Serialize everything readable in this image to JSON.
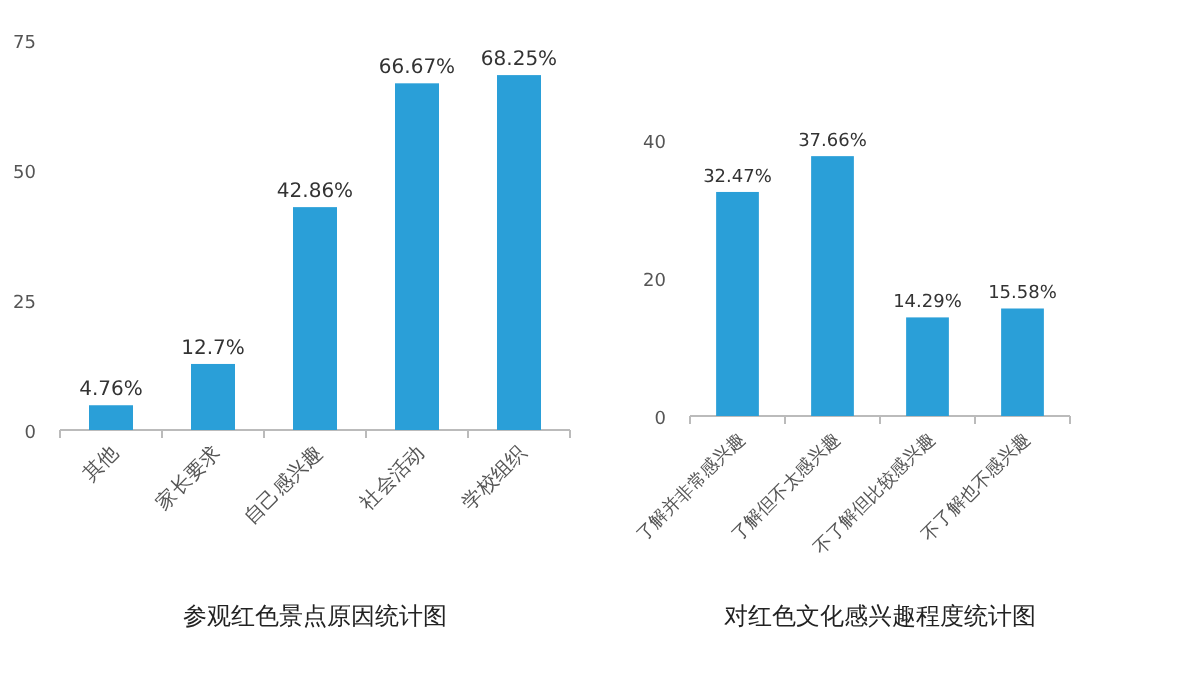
{
  "chart_data": [
    {
      "type": "bar",
      "title": "参观红色景点原因统计图",
      "categories": [
        "其他",
        "家长要求",
        "自己感兴趣",
        "社会活动",
        "学校组织"
      ],
      "values": [
        4.76,
        12.7,
        42.86,
        66.67,
        68.25
      ],
      "value_labels": [
        "4.76%",
        "12.7%",
        "42.86%",
        "66.67%",
        "68.25%"
      ],
      "color": "#2a9fd8",
      "ylim": [
        0,
        75
      ],
      "yticks": [
        0,
        25,
        50,
        75
      ],
      "grid": false
    },
    {
      "type": "bar",
      "title": "对红色文化感兴趣程度统计图",
      "categories": [
        "了解并非常感兴趣",
        "了解但不太感兴趣",
        "不了解但比较感兴趣",
        "不了解也不感兴趣"
      ],
      "values": [
        32.47,
        37.66,
        14.29,
        15.58
      ],
      "value_labels": [
        "32.47%",
        "37.66%",
        "14.29%",
        "15.58%"
      ],
      "color": "#2a9fd8",
      "ylim": [
        0,
        40
      ],
      "yticks": [
        0,
        20,
        40
      ],
      "grid": false
    }
  ]
}
